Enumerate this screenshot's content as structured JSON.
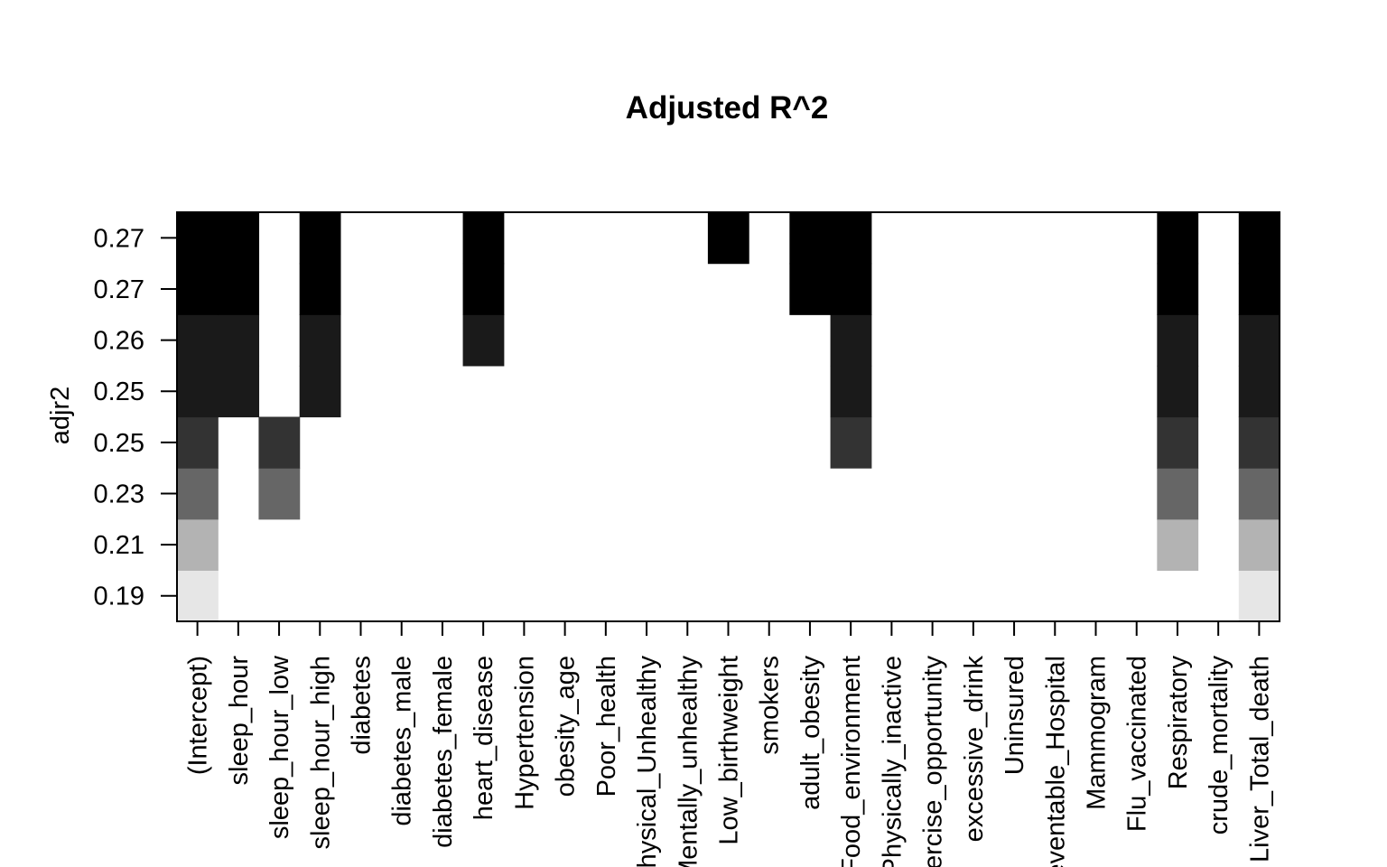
{
  "chart_data": {
    "type": "heatmap",
    "title": "Adjusted R^2",
    "xlabel": "",
    "ylabel": "adjr2",
    "y_tick_labels": [
      "0.19",
      "0.21",
      "0.23",
      "0.25",
      "0.25",
      "0.26",
      "0.27",
      "0.27"
    ],
    "x_tick_labels": [
      "(Intercept)",
      "sleep_hour",
      "sleep_hour_low",
      "sleep_hour_high",
      "diabetes",
      "diabetes_male",
      "diabetes_female",
      "heart_disease",
      "Hypertension",
      "obesity_age",
      "Poor_health",
      "Physical_Unhealthy",
      "Mentally_unhealthy",
      "Low_birthweight",
      "smokers",
      "adult_obesity",
      "Food_environment",
      "Physically_inactive",
      "Exercise_opportunity",
      "excessive_drink",
      "Uninsured",
      "Preventable_Hospital",
      "Mammogram",
      "Flu_vaccinated",
      "Respiratory",
      "crude_mortality",
      "Liver_Total_death"
    ],
    "model_rows_bottom_to_top": [
      0,
      1,
      2,
      3,
      4,
      5,
      6,
      7
    ],
    "row_gray_levels_bottom_to_top": [
      "#e6e6e6",
      "#b3b3b3",
      "#666666",
      "#333333",
      "#1a1a1a",
      "#1a1a1a",
      "#000000",
      "#000000"
    ],
    "included_variables_per_row": {
      "0": [
        0,
        26
      ],
      "1": [
        0,
        24,
        26
      ],
      "2": [
        0,
        2,
        24,
        26
      ],
      "3": [
        0,
        2,
        16,
        24,
        26
      ],
      "4": [
        0,
        1,
        3,
        16,
        24,
        26
      ],
      "5": [
        0,
        1,
        3,
        7,
        16,
        24,
        26
      ],
      "6": [
        0,
        1,
        3,
        7,
        15,
        16,
        24,
        26
      ],
      "7": [
        0,
        1,
        3,
        7,
        13,
        15,
        16,
        24,
        26
      ]
    },
    "grid": false,
    "legend": "none"
  }
}
